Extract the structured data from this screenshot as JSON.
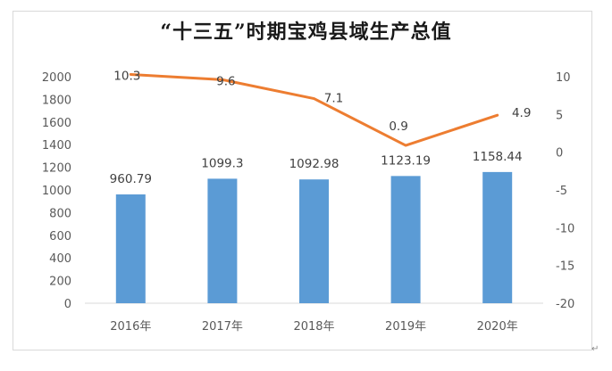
{
  "chart_data": {
    "type": "bar+line",
    "title": "“十三五”时期宝鸡县域生产总值",
    "categories": [
      "2016年",
      "2017年",
      "2018年",
      "2019年",
      "2020年"
    ],
    "series": [
      {
        "type": "bar",
        "axis": "left",
        "values": [
          960.79,
          1099.3,
          1092.98,
          1123.19,
          1158.44
        ],
        "color": "#5b9bd5"
      },
      {
        "type": "line",
        "axis": "right",
        "values": [
          10.3,
          9.6,
          7.1,
          0.9,
          4.9
        ],
        "color": "#ed7d31"
      }
    ],
    "bar_labels": [
      "960.79",
      "1099.3",
      "1092.98",
      "1123.19",
      "1158.44"
    ],
    "line_labels": [
      "10.3",
      "9.6",
      "7.1",
      "0.9",
      "4.9"
    ],
    "y_left": {
      "min": 0,
      "max": 2000,
      "step": 200,
      "ticks": [
        "0",
        "200",
        "400",
        "600",
        "800",
        "1000",
        "1200",
        "1400",
        "1600",
        "1800",
        "2000"
      ]
    },
    "y_right": {
      "min": -20,
      "max": 10,
      "step": 5,
      "ticks": [
        "-20",
        "-15",
        "-10",
        "-5",
        "0",
        "5",
        "10"
      ]
    },
    "grid": false,
    "legend": "none"
  },
  "page": {
    "return_mark": "↵"
  }
}
